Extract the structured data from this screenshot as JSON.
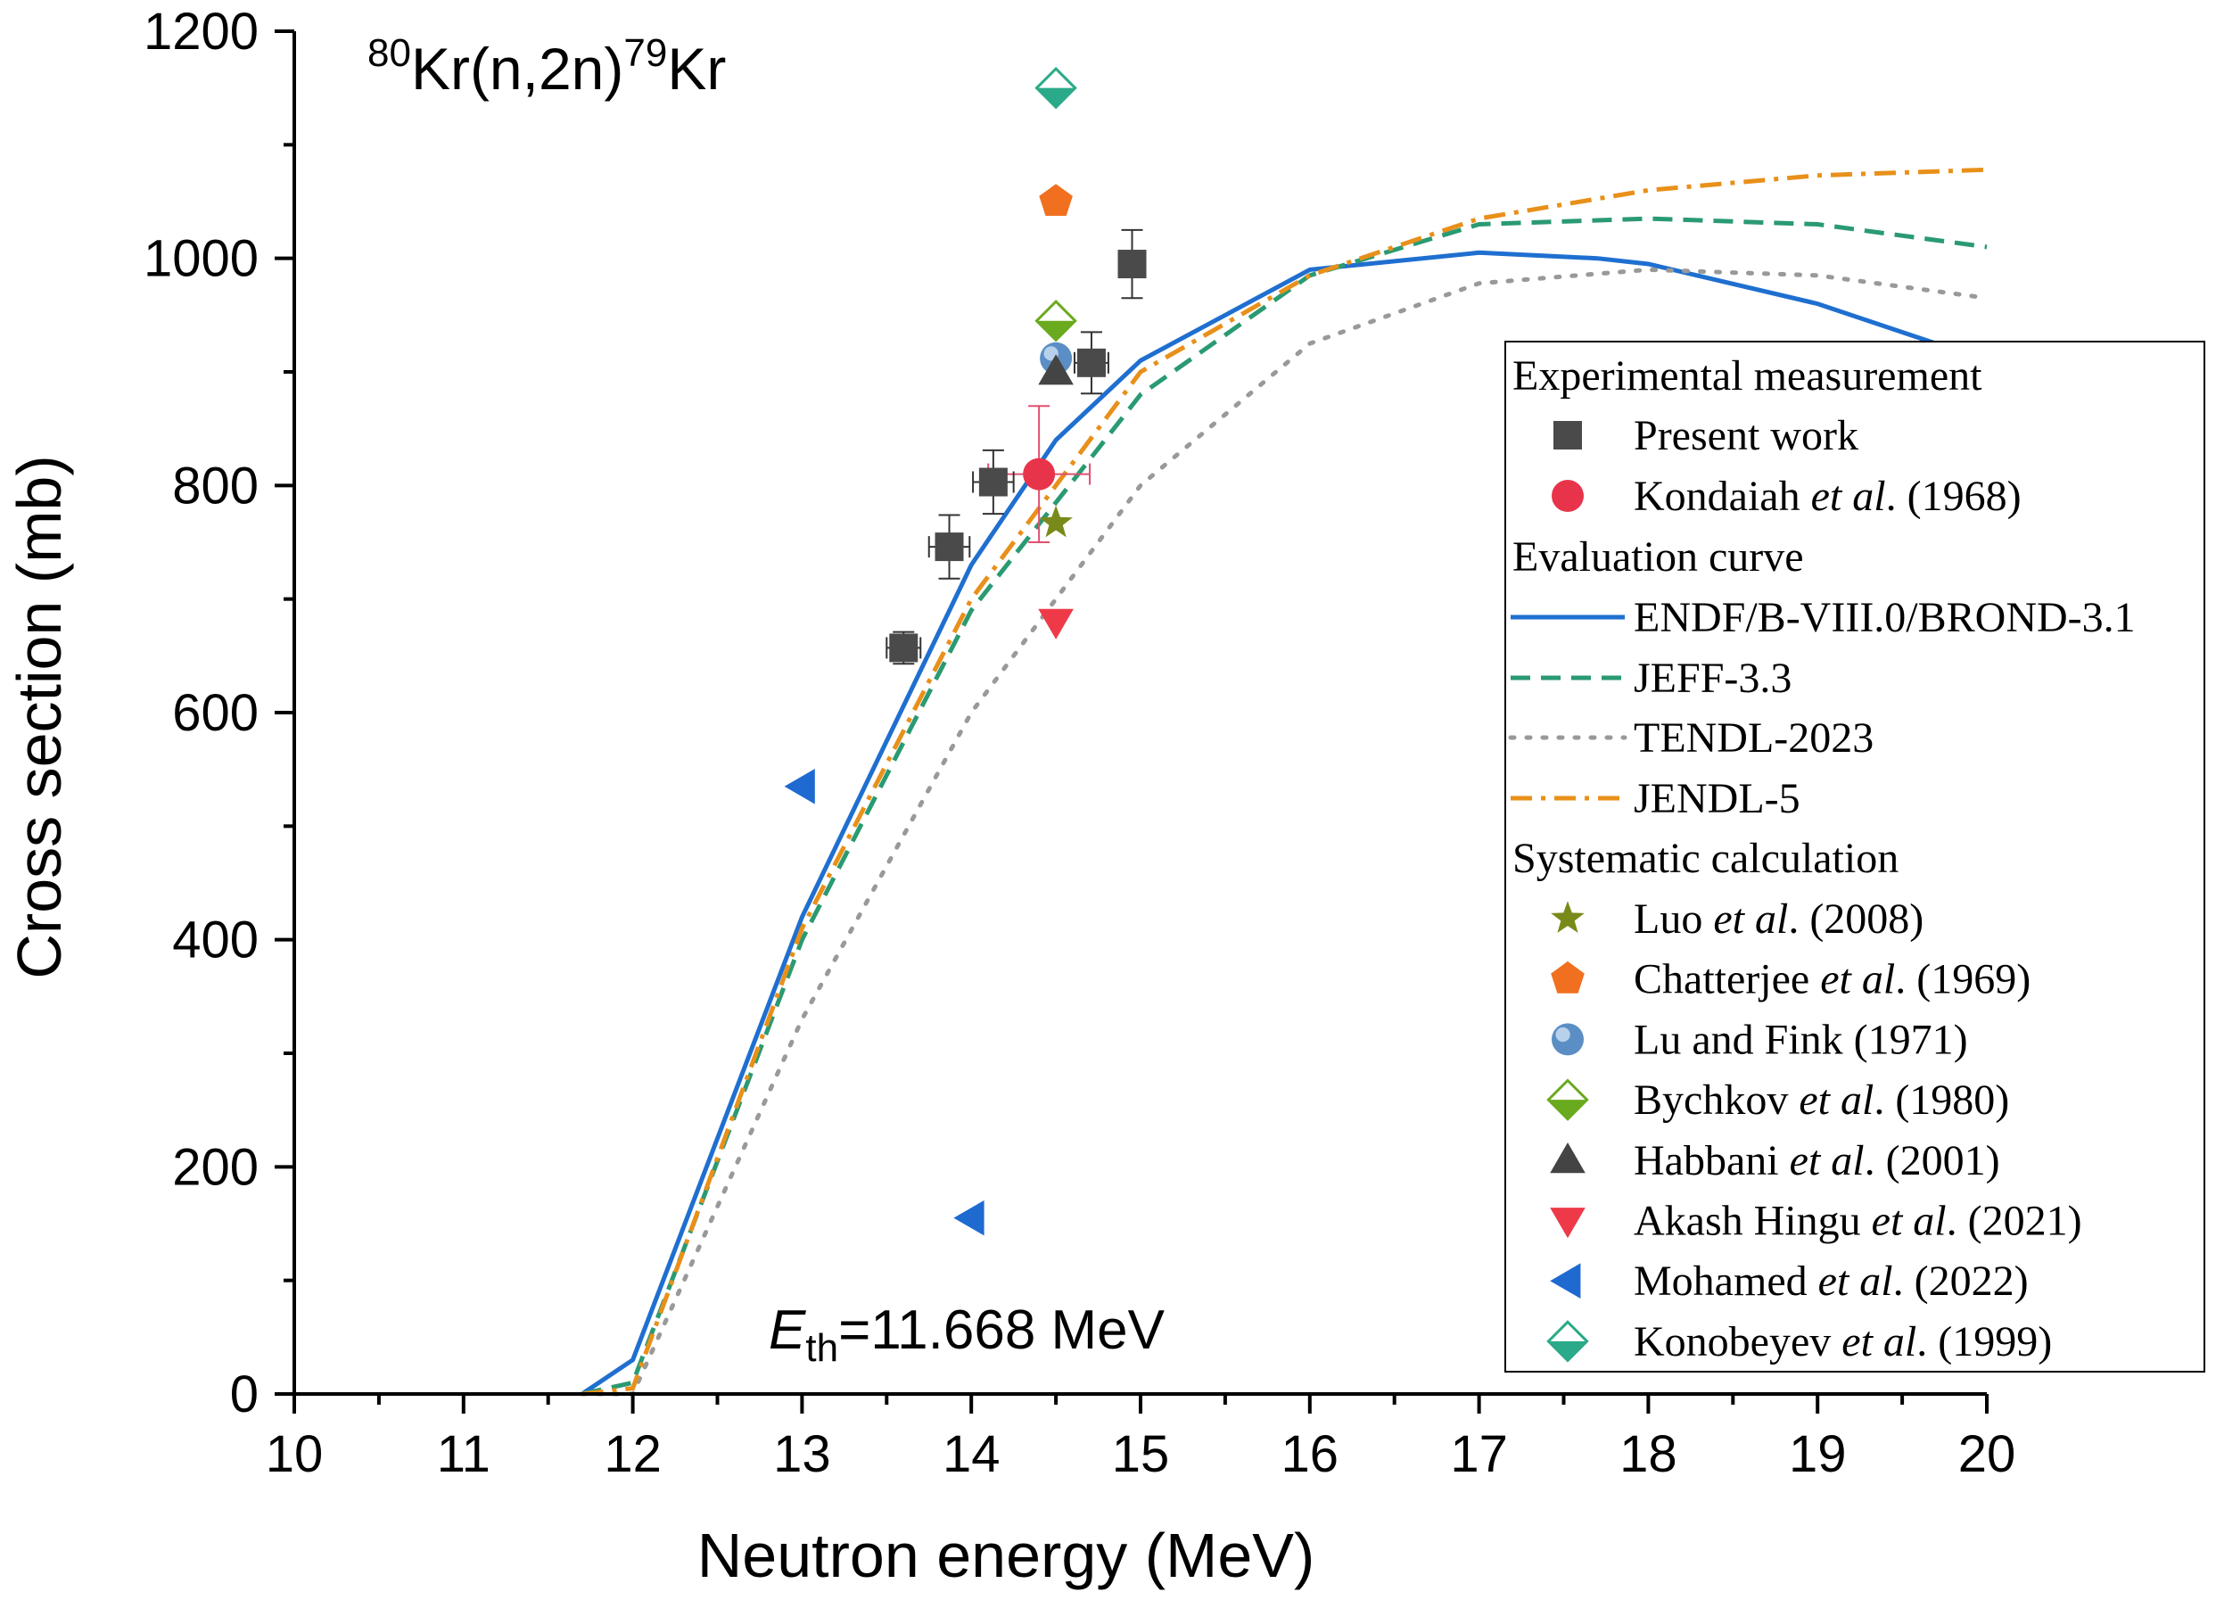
{
  "chart_data": {
    "type": "scatter",
    "reaction": {
      "a": "80",
      "b": "Kr(n,2n)",
      "c": "79",
      "d": "Kr"
    },
    "threshold": {
      "e": "E",
      "sub": "th",
      "rest": "=11.668 MeV"
    },
    "xlabel": "Neutron energy (MeV)",
    "ylabel": "Cross section (mb)",
    "xlim": [
      10,
      20
    ],
    "ylim": [
      0,
      1200
    ],
    "x_ticks": [
      "10",
      "11",
      "12",
      "13",
      "14",
      "15",
      "16",
      "17",
      "18",
      "19",
      "20"
    ],
    "y_ticks": [
      "0",
      "200",
      "400",
      "600",
      "800",
      "1000",
      "1200"
    ],
    "grid": false,
    "legend_position": "right",
    "legend": {
      "experimental_header": "Experimental measurement",
      "evaluation_header": "Evaluation curve",
      "systematic_header": "Systematic calculation"
    },
    "present_work": {
      "label": "Present work",
      "color": "#4a4a4a",
      "points": [
        {
          "x": 13.6,
          "y": 657,
          "xerr": 0.1,
          "yerr": 14
        },
        {
          "x": 13.87,
          "y": 746,
          "xerr": 0.12,
          "yerr": 28
        },
        {
          "x": 14.13,
          "y": 803,
          "xerr": 0.12,
          "yerr": 28
        },
        {
          "x": 14.71,
          "y": 908,
          "xerr": 0.1,
          "yerr": 27
        },
        {
          "x": 14.95,
          "y": 995,
          "xerr": 0.0,
          "yerr": 30
        }
      ]
    },
    "kondaiah": {
      "label_pre": "Kondaiah ",
      "label_it": "et al",
      "label_post": ". (1968)",
      "color": "#e8344a",
      "points": [
        {
          "x": 14.4,
          "y": 810,
          "xerr": 0.3,
          "yerr": 60
        }
      ]
    },
    "curves": [
      {
        "label": "ENDF/B-VIII.0/BROND-3.1",
        "color": "#1f6fd0",
        "style": "solid",
        "x": [
          11.7,
          12,
          13,
          14,
          14.5,
          15,
          16,
          17,
          17.7,
          18,
          19,
          19.7
        ],
        "y": [
          0,
          30,
          420,
          730,
          840,
          910,
          990,
          1005,
          1000,
          995,
          960,
          925
        ]
      },
      {
        "label": "JEFF-3.3",
        "color": "#2a9a72",
        "style": "dash",
        "x": [
          11.7,
          12,
          13,
          14,
          15,
          16,
          17,
          18,
          19,
          20
        ],
        "y": [
          0,
          10,
          400,
          690,
          880,
          985,
          1030,
          1035,
          1030,
          1010
        ]
      },
      {
        "label": "TENDL-2023",
        "color": "#999999",
        "style": "dot",
        "x": [
          11.7,
          12,
          13,
          14,
          15,
          16,
          17,
          18,
          19,
          20
        ],
        "y": [
          0,
          0,
          330,
          600,
          800,
          925,
          978,
          990,
          985,
          965
        ]
      },
      {
        "label": "JENDL-5",
        "color": "#e8901a",
        "style": "dashdot",
        "x": [
          11.7,
          12,
          13,
          14,
          15,
          16,
          17,
          18,
          19,
          20
        ],
        "y": [
          0,
          5,
          410,
          700,
          900,
          985,
          1035,
          1060,
          1073,
          1078
        ]
      }
    ],
    "systematics": [
      {
        "label_pre": "Luo ",
        "label_it": "et al",
        "label_post": ". (2008)",
        "marker": "star",
        "color": "#7a8a1a",
        "x": 14.5,
        "y": 767
      },
      {
        "label_pre": "Chatterjee ",
        "label_it": "et al",
        "label_post": ". (1969)",
        "marker": "pentagon",
        "color": "#f07020",
        "x": 14.5,
        "y": 1050
      },
      {
        "label_pre": "Lu and Fink (1971)",
        "label_it": "",
        "label_post": "",
        "marker": "sphere",
        "color": "#5b8ec4",
        "x": 14.5,
        "y": 912
      },
      {
        "label_pre": "Bychkov ",
        "label_it": "et al",
        "label_post": ". (1980)",
        "marker": "diamond-half",
        "color": "#6aaa1e",
        "x": 14.5,
        "y": 945
      },
      {
        "label_pre": "Habbani ",
        "label_it": "et al",
        "label_post": ". (2001)",
        "marker": "triangle-up",
        "color": "#444444",
        "x": 14.5,
        "y": 900
      },
      {
        "label_pre": "Akash Hingu ",
        "label_it": "et al",
        "label_post": ". (2021)",
        "marker": "triangle-down",
        "color": "#ee3a48",
        "x": 14.5,
        "y": 680
      },
      {
        "label_pre": "Mohamed ",
        "label_it": "et al",
        "label_post": ". (2022)",
        "marker": "triangle-left",
        "color": "#1e6ad0",
        "points": [
          {
            "x": 13.0,
            "y": 535
          },
          {
            "x": 14.0,
            "y": 155
          }
        ]
      },
      {
        "label_pre": "Konobeyev ",
        "label_it": "et al",
        "label_post": ". (1999)",
        "marker": "diamond-half",
        "color": "#2aaa88",
        "x": 14.5,
        "y": 1150
      }
    ]
  }
}
